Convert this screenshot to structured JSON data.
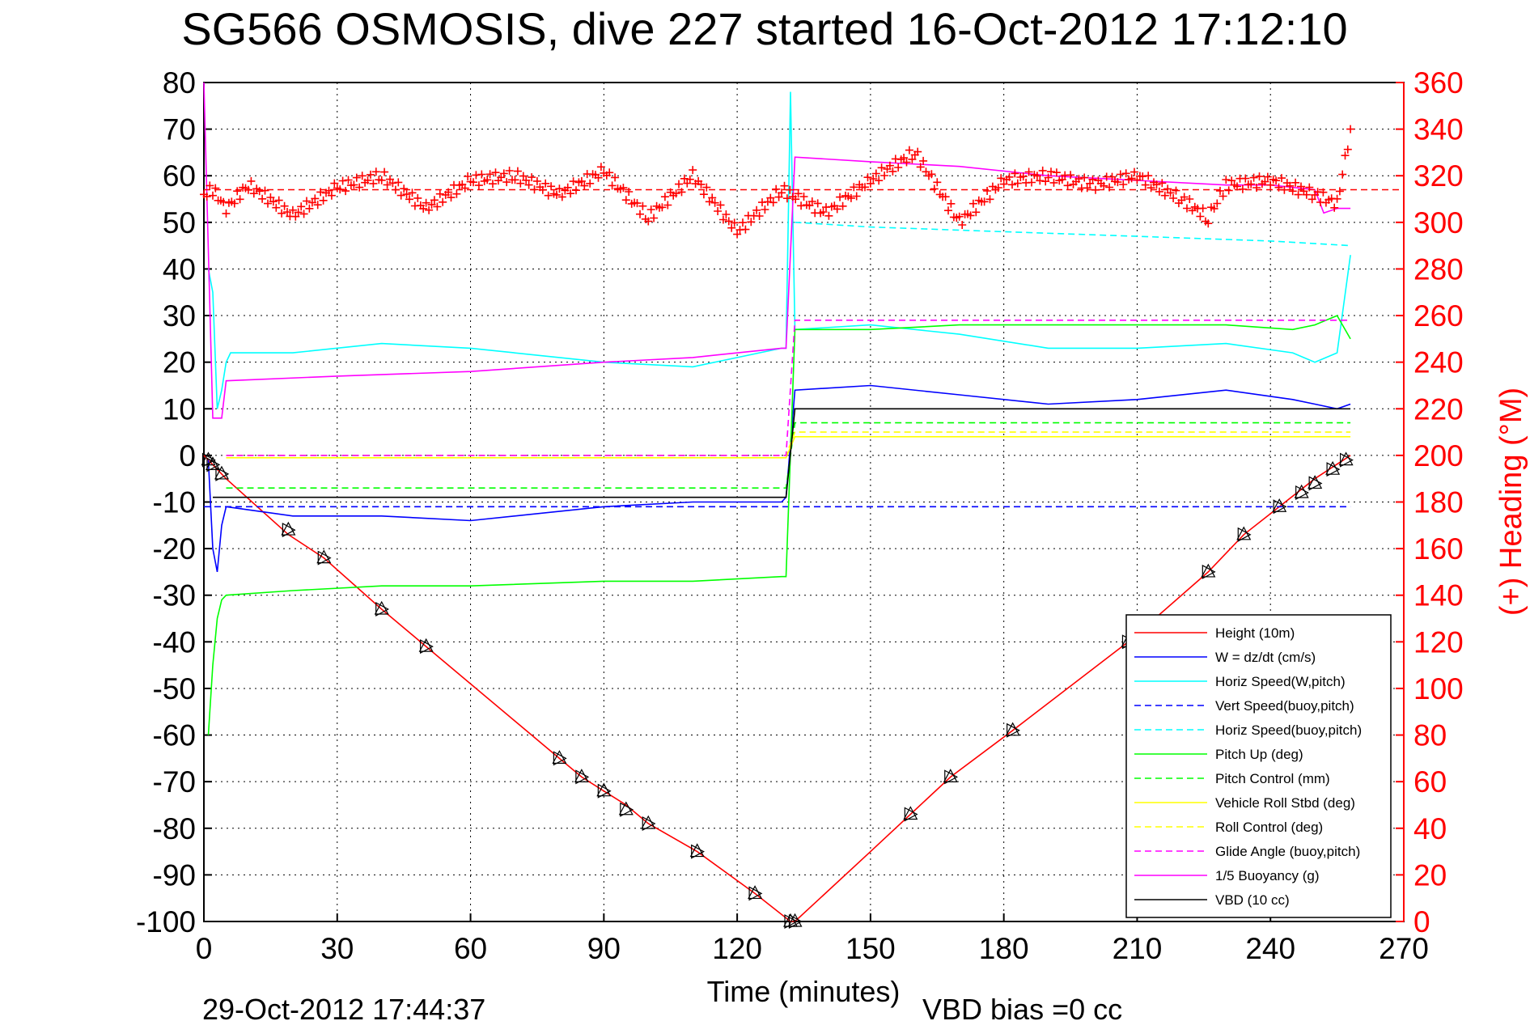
{
  "chart_data": {
    "type": "line",
    "title": "SG566 OSMOSIS, dive 227 started 16-Oct-2012 17:12:10",
    "xlabel": "Time (minutes)",
    "ylabel_right": "(+) Heading (°M)",
    "footer_left": "29-Oct-2012 17:44:37",
    "footer_right": "VBD bias =0 cc",
    "xlim": [
      0,
      270
    ],
    "ylim": [
      -100,
      80
    ],
    "ylim_right": [
      0,
      360
    ],
    "x_ticks": [
      "0",
      "30",
      "60",
      "90",
      "120",
      "150",
      "180",
      "210",
      "240",
      "270"
    ],
    "y_ticks": [
      "80",
      "70",
      "60",
      "50",
      "40",
      "30",
      "20",
      "10",
      "0",
      "-10",
      "-20",
      "-30",
      "-40",
      "-50",
      "-60",
      "-70",
      "-80",
      "-90",
      "-100"
    ],
    "y_right_ticks": [
      "360",
      "340",
      "320",
      "300",
      "280",
      "260",
      "240",
      "220",
      "200",
      "180",
      "160",
      "140",
      "120",
      "100",
      "80",
      "60",
      "40",
      "20",
      "0"
    ],
    "grid": true,
    "legend_position": "bottom-right",
    "colors": {
      "red": "#ff0000",
      "blue": "#0000ff",
      "cyan": "#00ffff",
      "green": "#00ff00",
      "yellow": "#ffff00",
      "magenta": "#ff00ff",
      "black": "#000000"
    },
    "series": [
      {
        "name": "Height (10m)",
        "color": "#ff0000",
        "dash": false,
        "x": [
          0,
          1,
          3,
          5,
          19,
          27,
          40,
          50,
          80,
          85,
          90,
          95,
          100,
          111,
          124,
          132,
          133,
          150,
          159,
          168,
          182,
          208,
          226,
          234,
          242,
          250,
          258
        ],
        "y": [
          0,
          -1,
          -3,
          -5,
          -17,
          -22,
          -33,
          -41,
          -65,
          -69,
          -72,
          -75,
          -79,
          -85,
          -94,
          -100,
          -100,
          -85,
          -77,
          -69,
          -59,
          -40,
          -25,
          -17,
          -11,
          -5,
          0
        ]
      },
      {
        "name": "W = dz/dt (cm/s)",
        "color": "#0000ff",
        "dash": false,
        "x": [
          1,
          2,
          3,
          4,
          5,
          20,
          40,
          60,
          90,
          110,
          130,
          131,
          133,
          150,
          170,
          190,
          210,
          230,
          245,
          250,
          255,
          258
        ],
        "y": [
          -1,
          -20,
          -25,
          -15,
          -11,
          -13,
          -13,
          -14,
          -11,
          -10,
          -10,
          -9,
          14,
          15,
          13,
          11,
          12,
          14,
          12,
          11,
          10,
          11
        ]
      },
      {
        "name": "Horiz Speed(W,pitch)",
        "color": "#00ffff",
        "dash": false,
        "x": [
          1,
          2,
          3,
          4,
          5,
          6,
          20,
          40,
          60,
          90,
          110,
          130,
          131,
          132,
          133,
          150,
          170,
          190,
          210,
          230,
          245,
          250,
          255,
          258
        ],
        "y": [
          40,
          35,
          10,
          14,
          20,
          22,
          22,
          24,
          23,
          20,
          19,
          23,
          23,
          78,
          27,
          28,
          26,
          23,
          23,
          24,
          22,
          20,
          22,
          43
        ]
      },
      {
        "name": "Vert Speed(buoy,pitch)",
        "color": "#0000ff",
        "dash": true,
        "x": [
          0,
          258
        ],
        "y": [
          -11,
          -11
        ]
      },
      {
        "name": "Horiz Speed(buoy,pitch)",
        "color": "#00ffff",
        "dash": true,
        "x": [
          133,
          150,
          180,
          210,
          240,
          258
        ],
        "y": [
          50,
          49,
          48,
          47,
          46,
          45
        ]
      },
      {
        "name": "Pitch Up (deg)",
        "color": "#00ff00",
        "dash": false,
        "x": [
          1,
          2,
          3,
          4,
          5,
          20,
          40,
          60,
          90,
          110,
          130,
          131,
          133,
          150,
          170,
          190,
          210,
          230,
          245,
          250,
          255,
          258
        ],
        "y": [
          -60,
          -45,
          -35,
          -31,
          -30,
          -29,
          -28,
          -28,
          -27,
          -27,
          -26,
          -26,
          27,
          27,
          28,
          28,
          28,
          28,
          27,
          28,
          30,
          25
        ]
      },
      {
        "name": "Pitch Control (mm)",
        "color": "#00ff00",
        "dash": true,
        "x": [
          5,
          130,
          131,
          133,
          258
        ],
        "y": [
          -7,
          -7,
          -7,
          7,
          7
        ]
      },
      {
        "name": "Vehicle Roll Stbd (deg)",
        "color": "#ffff00",
        "dash": false,
        "x": [
          5,
          130,
          131,
          133,
          258
        ],
        "y": [
          -0.5,
          -0.5,
          -0.5,
          4,
          4
        ]
      },
      {
        "name": "Roll Control (deg)",
        "color": "#ffff00",
        "dash": true,
        "x": [
          5,
          130,
          131,
          133,
          258
        ],
        "y": [
          0,
          0,
          0,
          5,
          5
        ]
      },
      {
        "name": "Glide Angle (buoy,pitch)",
        "color": "#ff00ff",
        "dash": true,
        "x": [
          5,
          130,
          131,
          133,
          258
        ],
        "y": [
          0,
          0,
          0,
          29,
          29
        ]
      },
      {
        "name": "1/5 Buoyancy (g)",
        "color": "#ff00ff",
        "dash": false,
        "x": [
          0,
          2,
          4,
          5,
          30,
          60,
          90,
          110,
          130,
          131,
          133,
          150,
          170,
          190,
          210,
          230,
          240,
          250,
          252,
          255,
          258
        ],
        "y": [
          80,
          8,
          8,
          16,
          17,
          18,
          20,
          21,
          23,
          23,
          64,
          63,
          62,
          60,
          59,
          58,
          58,
          57,
          52,
          53,
          53
        ]
      },
      {
        "name": "VBD (10 cc)",
        "color": "#000000",
        "dash": false,
        "x": [
          2,
          130,
          131,
          133,
          150,
          258
        ],
        "y": [
          -9,
          -9,
          -9,
          10,
          10,
          10
        ]
      }
    ],
    "heading_series": {
      "name": "(+) Heading (°M)",
      "color": "#ff0000",
      "marker": "+",
      "x": [
        0,
        2,
        5,
        10,
        20,
        30,
        40,
        50,
        60,
        70,
        80,
        90,
        100,
        110,
        120,
        130,
        140,
        150,
        160,
        170,
        180,
        190,
        200,
        210,
        220,
        226,
        230,
        240,
        250,
        255,
        258
      ],
      "y": [
        312,
        314,
        306,
        316,
        303,
        315,
        320,
        306,
        318,
        320,
        312,
        322,
        302,
        320,
        296,
        314,
        304,
        318,
        330,
        300,
        318,
        320,
        316,
        320,
        310,
        302,
        316,
        318,
        312,
        308,
        340
      ]
    },
    "reference_line": {
      "name": "mean heading",
      "color": "#ff0000",
      "dash": true,
      "y_right": 314
    },
    "markers": {
      "name": "sample points",
      "color": "#000000",
      "x": [
        1,
        2,
        4,
        19,
        27,
        40,
        50,
        80,
        85,
        90,
        95,
        100,
        111,
        124,
        132,
        133,
        159,
        168,
        182,
        208,
        226,
        234,
        242,
        247,
        250,
        254,
        257
      ],
      "y": [
        -1,
        -2,
        -4,
        -16,
        -22,
        -33,
        -41,
        -65,
        -69,
        -72,
        -76,
        -79,
        -85,
        -94,
        -100,
        -100,
        -77,
        -69,
        -59,
        -40,
        -25,
        -17,
        -11,
        -8,
        -6,
        -3,
        -1
      ]
    }
  }
}
